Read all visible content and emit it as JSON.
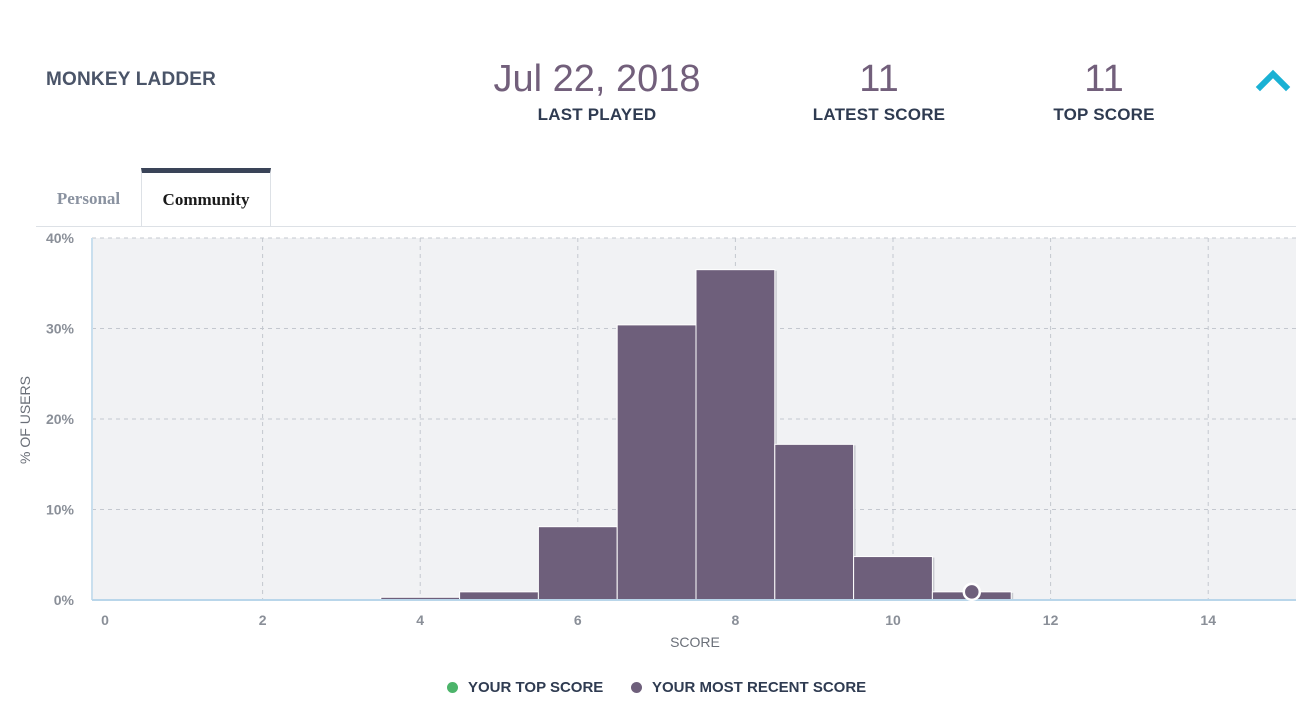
{
  "header": {
    "game_title": "MONKEY LADDER",
    "last_played": {
      "value": "Jul 22, 2018",
      "label": "LAST PLAYED"
    },
    "latest_score": {
      "value": "11",
      "label": "LATEST SCORE"
    },
    "top_score": {
      "value": "11",
      "label": "TOP SCORE"
    }
  },
  "tabs": [
    {
      "label": "Personal",
      "active": false
    },
    {
      "label": "Community",
      "active": true
    }
  ],
  "colors": {
    "bar": "#6e5f7b",
    "plot_background": "#f1f2f4",
    "accent": "#1ab1d4",
    "top_score_marker": "#4cb46a",
    "recent_score_marker": "#6e5f7b"
  },
  "chart_data": {
    "type": "bar",
    "xlabel": "SCORE",
    "ylabel": "% OF USERS",
    "xlim": [
      -0.5,
      15
    ],
    "ylim": [
      0,
      40
    ],
    "x_ticks": [
      0,
      2,
      4,
      6,
      8,
      10,
      12,
      14
    ],
    "y_ticks": [
      {
        "value": 0,
        "label": "0%"
      },
      {
        "value": 10,
        "label": "10%"
      },
      {
        "value": 20,
        "label": "20%"
      },
      {
        "value": 30,
        "label": "30%"
      },
      {
        "value": 40,
        "label": "40%"
      }
    ],
    "grid": true,
    "bins": [
      {
        "score": 4,
        "percent": 0.3
      },
      {
        "score": 5,
        "percent": 0.9
      },
      {
        "score": 6,
        "percent": 8.1
      },
      {
        "score": 7,
        "percent": 30.4
      },
      {
        "score": 8,
        "percent": 36.5
      },
      {
        "score": 9,
        "percent": 17.2
      },
      {
        "score": 10,
        "percent": 4.8
      },
      {
        "score": 11,
        "percent": 0.9
      }
    ],
    "markers": {
      "top_score": 11,
      "most_recent_score": 11
    },
    "legend": [
      {
        "label": "YOUR TOP SCORE",
        "color": "#4cb46a"
      },
      {
        "label": "YOUR MOST RECENT SCORE",
        "color": "#6e5f7b"
      }
    ],
    "legend_position": "bottom"
  }
}
